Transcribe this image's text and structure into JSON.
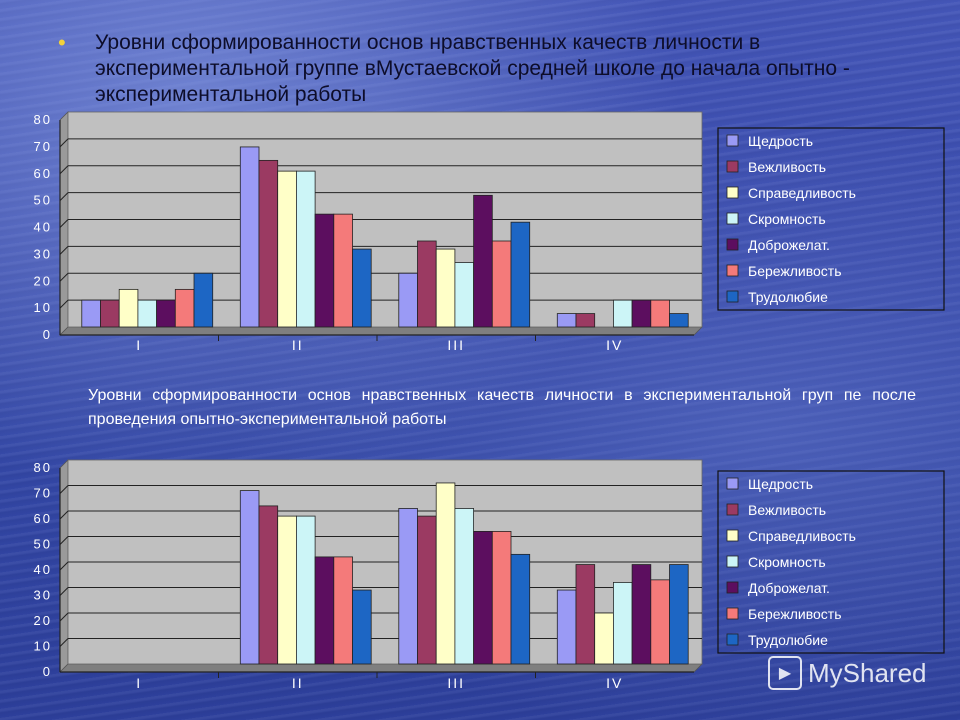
{
  "page": {
    "title": "Уровни сформированности основ нравственных качеств личности в экспериментальной группе вМустаевской средней школе до начала опытно - экспериментальной работы",
    "subtitle": "Уровни сформированности основ нравственных качеств личности в экспериментальной груп пе после проведения опытно-экспериментальной работы",
    "bullet": "•",
    "watermark": "MyShared"
  },
  "chart_data": [
    {
      "type": "bar",
      "title": "Уровни сформированности основ нравственных качеств личности в экспериментальной группе вМустаевской средней школе до начала опытно - экспериментальной работы",
      "categories": [
        "I",
        "II",
        "III",
        "IV"
      ],
      "ylim": [
        0,
        80
      ],
      "yticks": [
        "0",
        "10",
        "20",
        "30",
        "40",
        "50",
        "60",
        "70",
        "80"
      ],
      "legend_position": "right",
      "grid": true,
      "series": [
        {
          "name": "Щедрость",
          "color": "#9a9af5",
          "values": [
            10,
            67,
            20,
            5
          ]
        },
        {
          "name": "Вежливость",
          "color": "#9b3a62",
          "values": [
            10,
            62,
            32,
            5
          ]
        },
        {
          "name": "Справедливость",
          "color": "#ffffc8",
          "values": [
            14,
            58,
            29,
            0
          ]
        },
        {
          "name": "Скромность",
          "color": "#ccf5f7",
          "values": [
            10,
            58,
            24,
            10
          ]
        },
        {
          "name": "Доброжелат.",
          "color": "#5c0e5f",
          "values": [
            10,
            42,
            49,
            10
          ]
        },
        {
          "name": "Бережливость",
          "color": "#f47a7a",
          "values": [
            14,
            42,
            32,
            10
          ]
        },
        {
          "name": "Трудолюбие",
          "color": "#1d66c4",
          "values": [
            20,
            29,
            39,
            5
          ]
        }
      ]
    },
    {
      "type": "bar",
      "title": "Уровни сформированности основ нравственных качеств личности в экспериментальной груп пе после проведения опытно-экспериментальной работы",
      "categories": [
        "I",
        "II",
        "III",
        "IV"
      ],
      "ylim": [
        0,
        80
      ],
      "yticks": [
        "0",
        "10",
        "20",
        "30",
        "40",
        "50",
        "60",
        "70",
        "80"
      ],
      "legend_position": "right",
      "grid": true,
      "series": [
        {
          "name": "Щедрость",
          "color": "#9a9af5",
          "values": [
            0,
            68,
            61,
            29
          ]
        },
        {
          "name": "Вежливость",
          "color": "#9b3a62",
          "values": [
            0,
            62,
            58,
            39
          ]
        },
        {
          "name": "Справедливость",
          "color": "#ffffc8",
          "values": [
            0,
            58,
            71,
            20
          ]
        },
        {
          "name": "Скромность",
          "color": "#ccf5f7",
          "values": [
            0,
            58,
            61,
            32
          ]
        },
        {
          "name": "Доброжелат.",
          "color": "#5c0e5f",
          "values": [
            0,
            42,
            52,
            39
          ]
        },
        {
          "name": "Бережливость",
          "color": "#f47a7a",
          "values": [
            0,
            42,
            52,
            33
          ]
        },
        {
          "name": "Трудолюбие",
          "color": "#1d66c4",
          "values": [
            0,
            29,
            43,
            39
          ]
        }
      ]
    }
  ]
}
